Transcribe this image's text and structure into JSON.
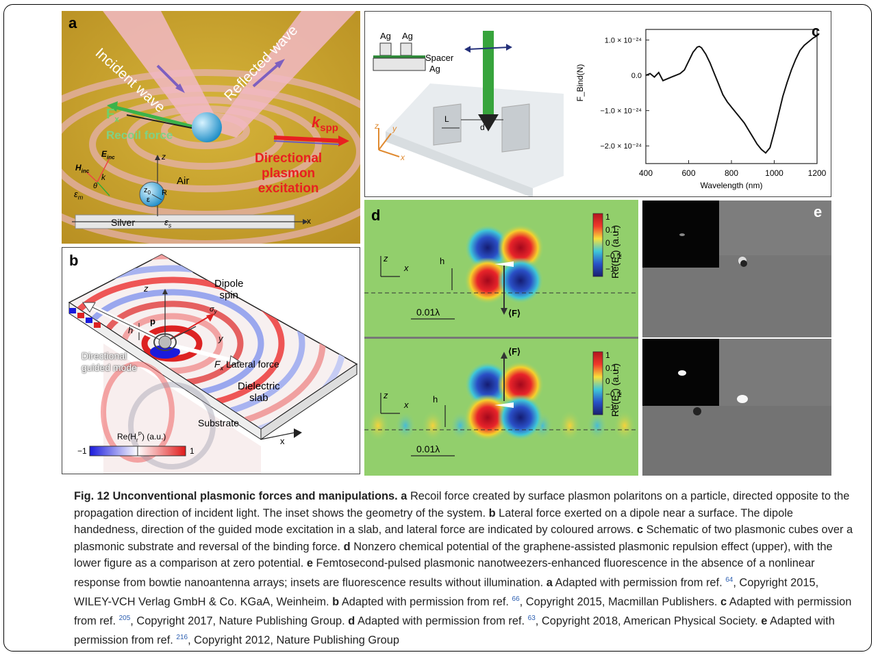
{
  "panel_a": {
    "label": "a",
    "incident": "Incident wave",
    "reflected": "Reflected wave",
    "fx": "F",
    "fx_sub": "x",
    "recoil": "Recoil force",
    "kspp": "k",
    "kspp_sub": "spp",
    "directional_1": "Directional",
    "directional_2": "plasmon",
    "directional_3": "excitation",
    "einc": "E",
    "einc_sub": "inc",
    "hinc": "H",
    "hinc_sub": "inc",
    "k": "k",
    "theta": "θ",
    "z": "z",
    "air": "Air",
    "em": "ε",
    "em_sub": "m",
    "z0": "z",
    "z0_sub": "0",
    "eps": "ε",
    "R": "R",
    "silver": "Silver",
    "es": "ε",
    "es_sub": "s",
    "x": "x"
  },
  "panel_b": {
    "label": "b",
    "z": "z",
    "dipole_1": "Dipole",
    "dipole_2": "spin",
    "sigma": "σ",
    "sigma_sub": "y",
    "p": "p",
    "h": "h",
    "y": "y",
    "fx": "F",
    "fx_sub": "x",
    "lateral": "Lateral force",
    "directional_1": "Directional",
    "directional_2": "guided mode",
    "dielectric_1": "Dielectric",
    "dielectric_2": "slab",
    "substrate": "Substrate",
    "x": "x",
    "cbar_label": "Re(H",
    "cbar_label_sub": "r",
    "cbar_label_sup": "P",
    "cbar_label_end": ") (a.u.)",
    "cbar_min": "−1",
    "cbar_max": "1"
  },
  "panel_c": {
    "label": "c",
    "ag1": "Ag",
    "ag2": "Ag",
    "spacer": "Spacer",
    "ag_base": "Ag",
    "L": "L",
    "d": "d",
    "z": "z",
    "y": "y",
    "x": "x"
  },
  "chart_data": {
    "type": "line",
    "xlabel": "Wavelength (nm)",
    "ylabel": "F_Bind(N)",
    "xlim": [
      400,
      1200
    ],
    "ylim": [
      -2.5e-24,
      1.3e-24
    ],
    "xticks": [
      "400",
      "600",
      "800",
      "1000",
      "1200"
    ],
    "yticks": [
      "1.0 × 10⁻²⁴",
      "0.0",
      "−1.0 × 10⁻²⁴",
      "−2.0 × 10⁻²⁴"
    ],
    "ytick_values": [
      1e-24,
      0,
      -1e-24,
      -2e-24
    ],
    "x": [
      400,
      420,
      440,
      460,
      480,
      500,
      520,
      540,
      560,
      580,
      600,
      620,
      640,
      650,
      660,
      680,
      700,
      720,
      740,
      760,
      780,
      800,
      820,
      840,
      860,
      880,
      900,
      920,
      940,
      960,
      980,
      1000,
      1020,
      1040,
      1060,
      1080,
      1100,
      1120,
      1140,
      1160,
      1180,
      1200
    ],
    "y": [
      0,
      5e-26,
      -5e-26,
      8e-26,
      -1.5e-25,
      -1e-25,
      -5e-26,
      0,
      5e-26,
      1.5e-25,
      4e-25,
      6.5e-25,
      8e-25,
      8.2e-25,
      7.8e-25,
      6e-25,
      3.5e-25,
      5e-26,
      -2.5e-25,
      -5.5e-25,
      -7.5e-25,
      -9e-25,
      -1.05e-24,
      -1.2e-24,
      -1.35e-24,
      -1.55e-24,
      -1.75e-24,
      -1.95e-24,
      -2.1e-24,
      -2.2e-24,
      -2.05e-24,
      -1.6e-24,
      -1.1e-24,
      -6e-25,
      -2e-25,
      1.5e-25,
      4.5e-25,
      7e-25,
      8.5e-25,
      9.5e-25,
      1.05e-24,
      1.12e-24
    ]
  },
  "panel_d": {
    "label": "d",
    "z": "z",
    "x": "x",
    "h": "h",
    "F": "⟨F⟩",
    "scale": "0.01λ",
    "cbar_title": "Re(E",
    "cbar_title_sub": "z",
    "cbar_title_end": ") (a.u.)",
    "ticks": [
      "1",
      "0.1",
      "0",
      "−0.1",
      "−1"
    ]
  },
  "panel_e": {
    "label": "e"
  },
  "caption": {
    "fig": "Fig. 12 Unconventional plasmonic forces and manipulations.",
    "a_lbl": "a",
    "a_text": "Recoil force created by surface plasmon polaritons on a particle, directed opposite to the propagation direction of incident light. The inset shows the geometry of the system.",
    "b_lbl": "b",
    "b_text": "Lateral force exerted on a dipole near a surface. The dipole handedness, direction of the guided mode excitation in a slab, and lateral force are indicated by coloured arrows.",
    "c_lbl": "c",
    "c_text": "Schematic of two plasmonic cubes over a plasmonic substrate and reversal of the binding force.",
    "d_lbl": "d",
    "d_text": "Nonzero chemical potential of the graphene-assisted plasmonic repulsion effect (upper), with the lower figure as a comparison at zero potential.",
    "e_lbl": "e",
    "e_text": "Femtosecond-pulsed plasmonic nanotweezers-enhanced fluorescence in the absence of a nonlinear response from bowtie nanoantenna arrays; insets are fluorescence results without illumination.",
    "ref_a_lbl": "a",
    "ref_a_pre": "Adapted with permission from ref.",
    "ref_a_num": "64",
    "ref_a_post": ", Copyright 2015, WILEY-VCH Verlag GmbH & Co. KGaA, Weinheim.",
    "ref_b_lbl": "b",
    "ref_b_pre": "Adapted with permission from ref.",
    "ref_b_num": "66",
    "ref_b_post": ", Copyright 2015, Macmillan Publishers.",
    "ref_c_lbl": "c",
    "ref_c_pre": "Adapted with permission from ref.",
    "ref_c_num": "205",
    "ref_c_post": ", Copyright 2017, Nature Publishing Group.",
    "ref_d_lbl": "d",
    "ref_d_pre": "Adapted with permission from ref.",
    "ref_d_num": "63",
    "ref_d_post": ", Copyright 2018, American Physical Society.",
    "ref_e_lbl": "e",
    "ref_e_pre": "Adapted with permission from ref.",
    "ref_e_num": "216",
    "ref_e_post": ", Copyright 2012, Nature Publishing Group"
  }
}
